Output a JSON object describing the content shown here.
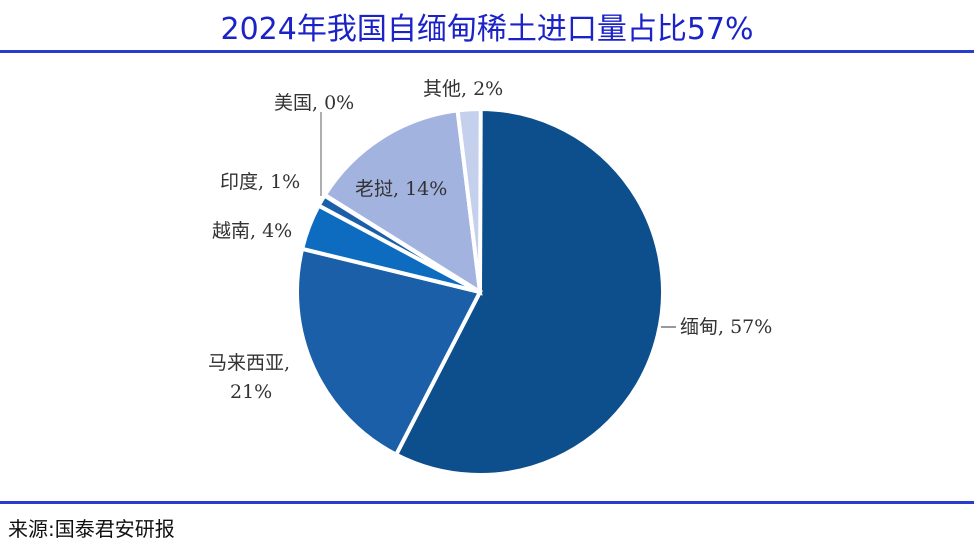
{
  "title": "2024年我国自缅甸稀土进口量占比57%",
  "source": "来源:国泰君安研报",
  "chart_data": {
    "type": "pie",
    "start": "top",
    "direction": "clockwise",
    "slices": [
      {
        "label": "缅甸, 57%",
        "name": "缅甸",
        "value": 57,
        "color": "#0c4f8c"
      },
      {
        "label": "马来西亚,",
        "label2": "21%",
        "name": "马来西亚",
        "value": 21,
        "color": "#1a5fa8"
      },
      {
        "label": "越南, 4%",
        "name": "越南",
        "value": 4,
        "color": "#0d6cc0"
      },
      {
        "label": "印度, 1%",
        "name": "印度",
        "value": 1,
        "color": "#1a5fa8"
      },
      {
        "label": "美国, 0%",
        "name": "美国",
        "value": 0,
        "color": "#1a5fa8"
      },
      {
        "label": "老挝, 14%",
        "name": "老挝",
        "value": 14,
        "color": "#a3b3e0"
      },
      {
        "label": "其他, 2%",
        "name": "其他",
        "value": 2,
        "color": "#c5d0ec"
      }
    ]
  }
}
